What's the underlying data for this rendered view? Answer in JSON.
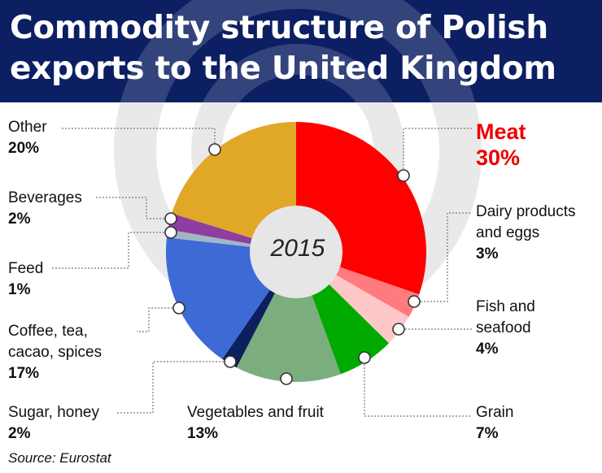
{
  "title": "Commodity structure of Polish exports to the United Kingdom",
  "source": "Source: Eurostat",
  "chart_data": {
    "type": "pie",
    "center_label": "2015",
    "unit": "%",
    "slices": [
      {
        "id": "meat",
        "name": "Meat",
        "value": 30,
        "percent_label": "30%",
        "color": "#fe0000"
      },
      {
        "id": "dairy",
        "name": "Dairy products\nand eggs",
        "value": 3,
        "percent_label": "3%",
        "color": "#ff7b7d"
      },
      {
        "id": "fish",
        "name": "Fish and\nseafood",
        "value": 4,
        "percent_label": "4%",
        "color": "#ffc8c8"
      },
      {
        "id": "grain",
        "name": "Grain",
        "value": 7,
        "percent_label": "7%",
        "color": "#00aa00"
      },
      {
        "id": "vegetables",
        "name": "Vegetables and fruit",
        "value": 13,
        "percent_label": "13%",
        "color": "#7cad7e"
      },
      {
        "id": "sugar",
        "name": "Sugar, honey",
        "value": 2,
        "percent_label": "2%",
        "color": "#0c1f5e"
      },
      {
        "id": "coffee",
        "name": "Coffee, tea,\ncacao, spices",
        "value": 17,
        "percent_label": "17%",
        "color": "#3d6ad5"
      },
      {
        "id": "feed",
        "name": "Feed",
        "value": 1,
        "percent_label": "1%",
        "color": "#a2b6c5"
      },
      {
        "id": "beverages",
        "name": "Beverages",
        "value": 2,
        "percent_label": "2%",
        "color": "#8d3ea0"
      },
      {
        "id": "other",
        "name": "Other",
        "value": 20,
        "percent_label": "20%",
        "color": "#e1a726"
      }
    ]
  }
}
